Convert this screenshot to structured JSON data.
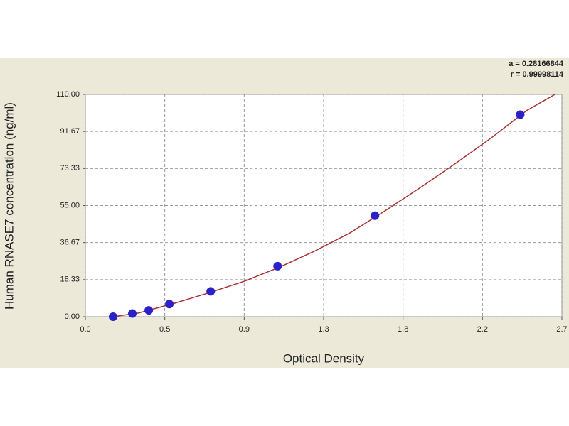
{
  "chart_data": {
    "type": "scatter",
    "title_x": "Optical Density",
    "title_y": "Human RNASE7 concentration (ng/ml)",
    "annotations": [
      "a = 0.28166844",
      "r = 0.99998114"
    ],
    "xlim": [
      0,
      2.7
    ],
    "xticks": [
      {
        "value": 0,
        "label": "0.0"
      },
      {
        "value": 0.45,
        "label": "0.5"
      },
      0.9,
      {
        "value": 1.35,
        "label": "1.3"
      },
      1.8,
      {
        "value": 2.25,
        "label": "2.2"
      },
      2.7
    ],
    "ylim": [
      0,
      110
    ],
    "yticks": [
      {
        "value": 0,
        "label": "0.00"
      },
      18.33,
      36.67,
      {
        "value": 55,
        "label": "55.00"
      },
      73.33,
      91.67,
      {
        "value": 110,
        "label": "110.00"
      }
    ],
    "grid": true,
    "points": {
      "color": "#2a22c8",
      "x": [
        0.157,
        0.266,
        0.359,
        0.476,
        0.71,
        1.089,
        1.641,
        2.464
      ],
      "values": [
        0,
        1.56,
        3.12,
        6.25,
        12.5,
        25,
        50,
        100
      ]
    },
    "curve": {
      "color": "#a83232",
      "x": [
        0.157,
        0.3,
        0.5,
        0.7,
        0.9,
        1.1,
        1.3,
        1.5,
        1.7,
        1.9,
        2.1,
        2.3,
        2.5,
        2.66
      ],
      "values": [
        0,
        1.8,
        6.5,
        11.8,
        17.5,
        24.5,
        32.5,
        41.5,
        52.5,
        64,
        76,
        88.5,
        102,
        110
      ]
    }
  }
}
